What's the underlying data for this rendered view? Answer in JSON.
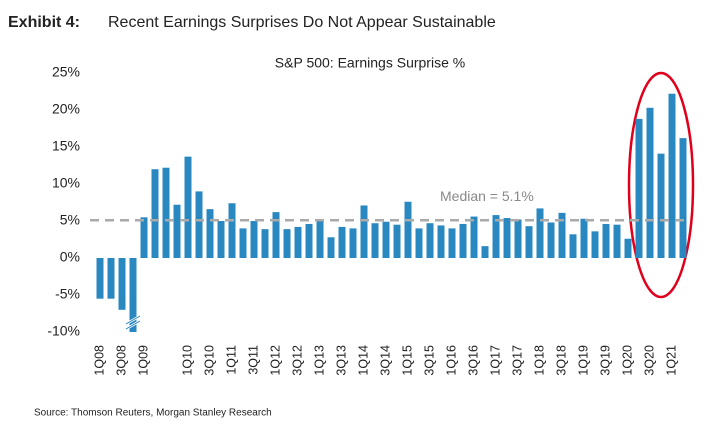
{
  "chart_data": {
    "type": "bar",
    "exhibit": "Exhibit 4:",
    "title": "Recent Earnings Surprises Do Not Appear Sustainable",
    "subtitle": "S&P 500: Earnings Surprise %",
    "source": "Source: Thomson Reuters, Morgan Stanley Research",
    "categories": [
      "1Q08",
      null,
      "3Q08",
      null,
      "1Q09",
      null,
      null,
      null,
      "1Q10",
      null,
      "3Q10",
      null,
      "1Q11",
      null,
      "3Q11",
      null,
      "1Q12",
      null,
      "3Q12",
      null,
      "1Q13",
      null,
      "3Q13",
      null,
      "1Q14",
      null,
      "3Q14",
      null,
      "1Q15",
      null,
      "3Q15",
      null,
      "1Q16",
      null,
      "3Q16",
      null,
      "1Q17",
      null,
      "3Q17",
      null,
      "1Q18",
      null,
      "3Q18",
      null,
      "1Q19",
      null,
      "3Q19",
      null,
      "1Q20",
      null,
      "3Q20",
      null,
      "1Q21",
      null
    ],
    "values": [
      -5.5,
      -5.5,
      -7,
      -10,
      5.5,
      12,
      12.2,
      7.2,
      13.7,
      9,
      6.6,
      5,
      7.4,
      4,
      5,
      3.9,
      6.2,
      3.9,
      4.2,
      4.6,
      5,
      2.8,
      4.2,
      4,
      7.1,
      4.7,
      4.9,
      4.5,
      7.6,
      4,
      4.7,
      4.4,
      4,
      4.6,
      5.6,
      1.6,
      5.8,
      5.4,
      5.2,
      4.3,
      6.7,
      4.8,
      6.1,
      3.2,
      5.3,
      3.6,
      4.6,
      4.5,
      2.6,
      18.8,
      20.3,
      14.1,
      22.2,
      16.2
    ],
    "color": "#2a88c0",
    "median": 5.1,
    "median_label": "Median = 5.1%",
    "ylim": [
      -10,
      25
    ],
    "yticks": [
      {
        "value": -10,
        "label": "-10%"
      },
      {
        "value": -5,
        "label": "-5%"
      },
      {
        "value": 0,
        "label": "0%"
      },
      {
        "value": 5,
        "label": "5%"
      },
      {
        "value": 10,
        "label": "10%"
      },
      {
        "value": 15,
        "label": "15%"
      },
      {
        "value": 20,
        "label": "20%"
      },
      {
        "value": 25,
        "label": "25%"
      }
    ]
  }
}
